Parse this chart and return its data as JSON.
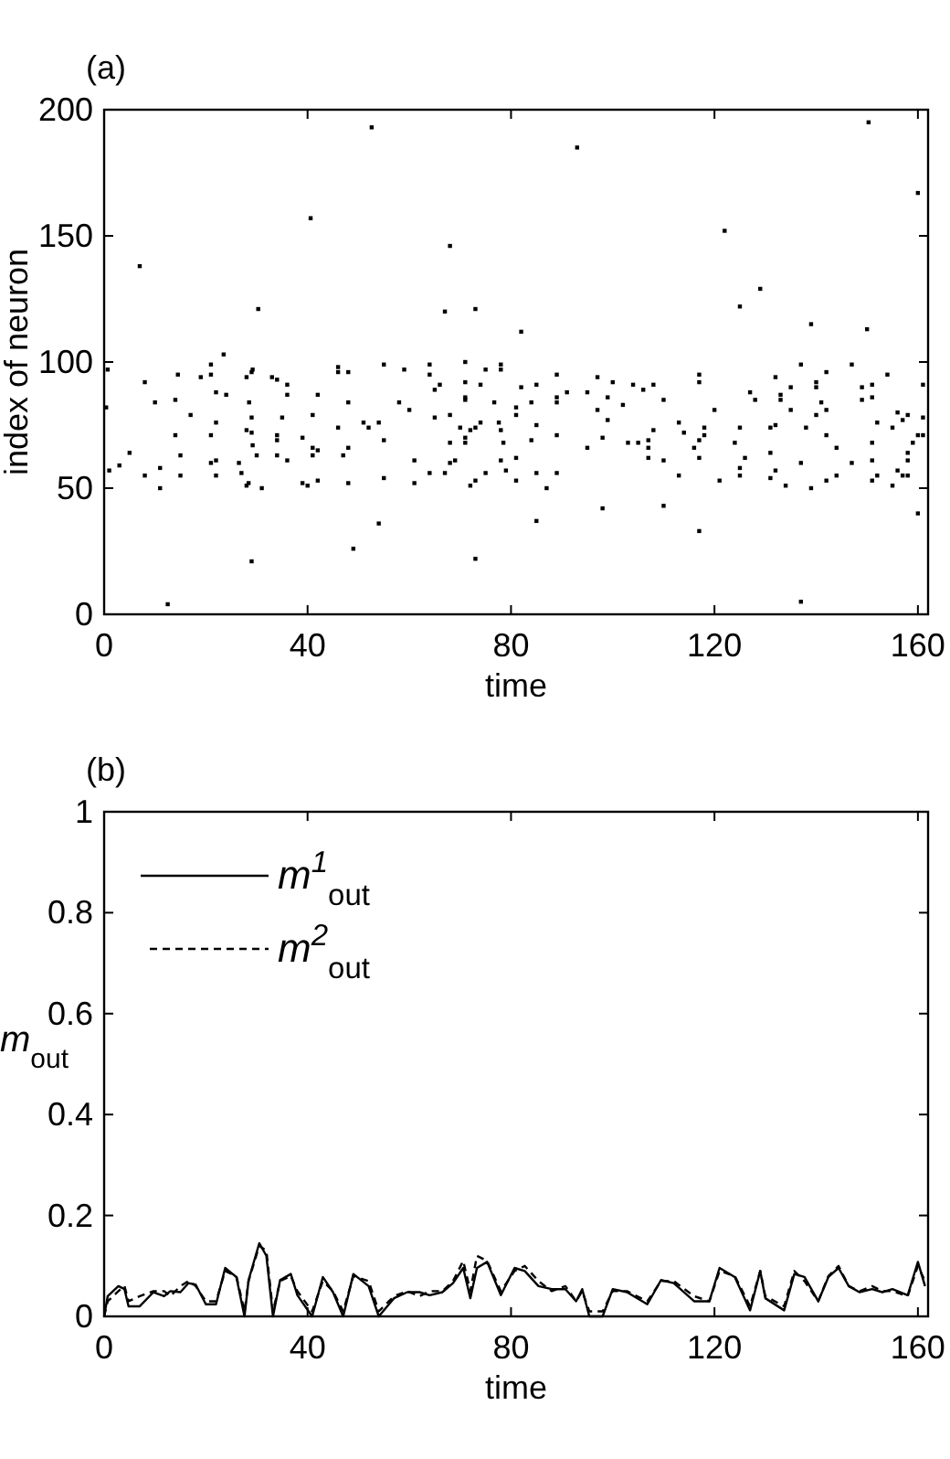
{
  "chart_data": [
    {
      "type": "scatter",
      "title": "(a)",
      "xlabel": "time",
      "ylabel": "index of neuron",
      "xlim": [
        0,
        162
      ],
      "ylim": [
        0,
        200
      ],
      "xticks": [
        0,
        40,
        80,
        120,
        160
      ],
      "yticks": [
        0,
        50,
        100,
        150,
        200
      ],
      "marker": "square",
      "grid": false,
      "legend": false,
      "series": [
        {
          "color": "#000000",
          "x": [
            0.7,
            0.4,
            1,
            3,
            5,
            7,
            8,
            8,
            10,
            11,
            11,
            12.5,
            14,
            14,
            14.5,
            15,
            15,
            17,
            19,
            21,
            21,
            21,
            21,
            22,
            22,
            22,
            22,
            23.5,
            24,
            26.5,
            27,
            28,
            28,
            28.5,
            29,
            28.4,
            28,
            29,
            29.2,
            29,
            29,
            29.2,
            30,
            30.3,
            31,
            33,
            34,
            34,
            34,
            34,
            36,
            36,
            35,
            36,
            39,
            40,
            39,
            40.6,
            41,
            41,
            41,
            42,
            42,
            42,
            46,
            46,
            48,
            48,
            48,
            47,
            46,
            48,
            49,
            51,
            52,
            52.6,
            54,
            55,
            54,
            55,
            55,
            58,
            59,
            60,
            61,
            61,
            64,
            64,
            65,
            64,
            65,
            66,
            67,
            67,
            68,
            68,
            68,
            69,
            68,
            70,
            71,
            71,
            71,
            71,
            71,
            71,
            72,
            73,
            73,
            73,
            72,
            73,
            74,
            75,
            74,
            75,
            82,
            78,
            78,
            76.7,
            77.6,
            78,
            78.5,
            78,
            79,
            81,
            81,
            82,
            81,
            81,
            84,
            84,
            85,
            85,
            85,
            85,
            87,
            89,
            89,
            89,
            89,
            89,
            91,
            93,
            95,
            95,
            97,
            97,
            98,
            98,
            99,
            99,
            100,
            102,
            103,
            104,
            105,
            106,
            107,
            107,
            107,
            108,
            108,
            110,
            110,
            110,
            113,
            113,
            114,
            116,
            117,
            117,
            117,
            117,
            118,
            118,
            117,
            120,
            121,
            122,
            124,
            125,
            125,
            125,
            125,
            126,
            127,
            128,
            129,
            131,
            131,
            131,
            132,
            132,
            132,
            133,
            133,
            134,
            135,
            135,
            137,
            137,
            137,
            138,
            139,
            140,
            140,
            139,
            140,
            141,
            142,
            142,
            142,
            142,
            144,
            144,
            147,
            147,
            149,
            149,
            150,
            150.3,
            151,
            151,
            151,
            151,
            151,
            152,
            152,
            154,
            155,
            155,
            156,
            156,
            157,
            157,
            158,
            158,
            158,
            158,
            159,
            160,
            160,
            160,
            161,
            161,
            161
          ],
          "values": [
            97,
            82,
            57,
            59,
            64,
            138,
            92,
            55,
            84,
            58,
            50,
            4,
            71,
            85,
            95,
            63,
            55,
            79,
            94,
            99,
            95,
            71,
            60,
            61,
            76,
            55,
            88,
            103,
            87,
            60,
            56,
            94,
            73,
            84,
            72,
            52,
            51,
            96,
            97,
            78,
            21,
            67,
            63,
            121,
            50,
            94,
            93,
            71,
            69,
            63,
            91,
            87,
            78,
            61,
            52,
            51,
            70,
            157,
            79,
            66,
            63,
            87,
            53,
            65,
            98,
            96,
            96,
            84,
            66,
            63,
            74,
            52,
            26,
            76,
            74,
            193,
            76,
            54,
            36,
            99,
            69,
            84,
            97,
            81,
            61,
            52,
            99,
            95,
            78,
            56,
            89,
            91,
            56,
            120,
            146,
            79,
            68,
            61,
            60,
            74,
            68,
            70,
            86,
            85,
            92,
            100,
            73,
            121,
            22,
            74,
            51,
            53,
            76,
            56,
            91,
            97,
            112,
            99,
            97,
            84,
            76,
            73,
            68,
            61,
            57,
            79,
            82,
            90,
            62,
            53,
            84,
            69,
            75,
            91,
            56,
            37,
            50,
            95,
            84,
            86,
            71,
            56,
            88,
            185,
            66,
            88,
            81,
            94,
            70,
            42,
            77,
            86,
            92,
            83,
            68,
            91,
            68,
            89,
            69,
            62,
            66,
            91,
            73,
            85,
            43,
            61,
            55,
            76,
            72,
            66,
            69,
            62,
            95,
            92,
            74,
            71,
            33,
            81,
            53,
            152,
            68,
            58,
            55,
            122,
            74,
            62,
            88,
            85,
            129,
            54,
            64,
            74,
            57,
            75,
            94,
            87,
            85,
            51,
            90,
            81,
            60,
            99,
            5,
            74,
            115,
            92,
            90,
            50,
            79,
            84,
            81,
            96,
            53,
            71,
            55,
            66,
            60,
            99,
            90,
            85,
            113,
            195,
            68,
            61,
            53,
            86,
            91,
            76,
            55,
            95,
            51,
            74,
            80,
            57,
            77,
            55,
            64,
            61,
            55,
            79,
            68,
            71,
            167,
            40,
            91,
            78,
            71
          ]
        }
      ]
    },
    {
      "type": "line",
      "title": "(b)",
      "xlabel": "time",
      "ylabel": "m$_{out}$",
      "xlim": [
        0,
        162
      ],
      "ylim": [
        0,
        1
      ],
      "xticks": [
        0,
        40,
        80,
        120,
        160
      ],
      "yticks": [
        0,
        0.2,
        0.4,
        0.6,
        0.8,
        1
      ],
      "grid": false,
      "legend": "top left",
      "series": [
        {
          "name": "m$^{1}$$_{out}$",
          "color": "#000000",
          "line_style": "solid",
          "x": [
            0,
            0.7,
            2.8,
            4,
            4.8,
            7,
            9.7,
            11.8,
            13,
            15,
            16.6,
            18,
            20,
            22,
            23.8,
            26,
            27.6,
            28.4,
            30.5,
            31.9,
            33.2,
            34.6,
            36.7,
            38,
            40.9,
            43,
            45,
            47,
            49,
            52,
            54,
            56,
            57,
            59.6,
            62,
            64,
            66.5,
            68.6,
            70.6,
            72,
            73.3,
            75.3,
            78,
            80.7,
            82.7,
            85.4,
            88,
            90.7,
            92.8,
            94,
            95.4,
            98,
            100,
            102.8,
            106.8,
            109.5,
            112,
            116,
            119,
            121,
            124,
            127,
            129,
            130,
            133.7,
            135.7,
            137.7,
            140.4,
            142.4,
            144.4,
            146.4,
            148.5,
            151,
            153,
            155,
            158,
            160,
            161.4
          ],
          "values": [
            0,
            0.04,
            0.06,
            0.054,
            0.02,
            0.02,
            0.048,
            0.04,
            0.05,
            0.048,
            0.066,
            0.063,
            0.024,
            0.024,
            0.096,
            0.078,
            0,
            0.072,
            0.145,
            0.12,
            0,
            0.072,
            0.084,
            0.042,
            0,
            0.078,
            0.048,
            0,
            0.084,
            0.06,
            0,
            0.024,
            0.036,
            0.048,
            0.048,
            0.042,
            0.048,
            0.066,
            0.096,
            0.036,
            0.096,
            0.108,
            0.042,
            0.096,
            0.09,
            0.06,
            0.054,
            0.054,
            0.03,
            0.054,
            0,
            0,
            0.054,
            0.048,
            0.024,
            0.072,
            0.066,
            0.03,
            0.03,
            0.096,
            0.078,
            0.012,
            0.09,
            0.036,
            0.012,
            0.084,
            0.078,
            0.03,
            0.078,
            0.096,
            0.06,
            0.048,
            0.054,
            0.048,
            0.054,
            0.042,
            0.108,
            0.06
          ]
        },
        {
          "name": "m$^{2}$$_{out}$",
          "color": "#000000",
          "line_style": "dashed",
          "x": [
            0,
            0.7,
            2.8,
            4,
            4.8,
            7,
            9.7,
            11.8,
            13,
            15,
            16.6,
            18,
            20,
            22,
            23.8,
            26,
            27.6,
            28.4,
            30.5,
            31.9,
            33.2,
            34.6,
            36.7,
            38,
            40.9,
            43,
            45,
            47,
            49,
            52,
            54,
            56,
            57,
            59.6,
            62,
            64,
            66.5,
            68.6,
            70.6,
            72,
            73.3,
            75.3,
            78,
            80.7,
            82.7,
            85.4,
            88,
            90.7,
            92.8,
            94,
            95.4,
            98,
            100,
            102.8,
            106.8,
            109.5,
            112,
            116,
            119,
            121,
            124,
            127,
            129,
            130,
            133.7,
            135.7,
            137.7,
            140.4,
            142.4,
            144.4,
            146.4,
            148.5,
            151,
            153,
            155,
            158,
            160,
            161.4
          ],
          "values": [
            0,
            0.03,
            0.05,
            0.06,
            0.03,
            0.04,
            0.05,
            0.05,
            0.04,
            0.06,
            0.07,
            0.06,
            0.03,
            0.03,
            0.09,
            0.08,
            0.01,
            0.07,
            0.14,
            0.13,
            0.01,
            0.07,
            0.08,
            0.05,
            0.01,
            0.07,
            0.05,
            0.01,
            0.08,
            0.07,
            0.01,
            0.03,
            0.04,
            0.05,
            0.04,
            0.05,
            0.05,
            0.07,
            0.11,
            0.05,
            0.12,
            0.11,
            0.05,
            0.09,
            0.1,
            0.07,
            0.05,
            0.06,
            0.03,
            0.05,
            0.01,
            0.01,
            0.05,
            0.05,
            0.03,
            0.07,
            0.07,
            0.04,
            0.03,
            0.09,
            0.08,
            0.02,
            0.09,
            0.04,
            0.02,
            0.09,
            0.07,
            0.03,
            0.08,
            0.1,
            0.06,
            0.05,
            0.06,
            0.05,
            0.05,
            0.04,
            0.1,
            0.07
          ]
        }
      ]
    }
  ]
}
